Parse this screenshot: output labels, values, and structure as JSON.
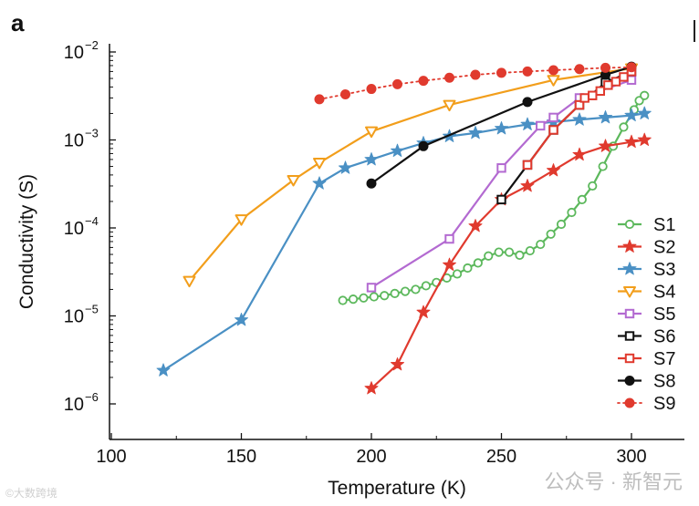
{
  "panel_label": "a",
  "watermark_right": "公众号 · 新智元",
  "watermark_left": "©大数跨境",
  "chart_data": {
    "type": "line",
    "yscale": "log",
    "xlabel": "Temperature (K)",
    "ylabel": "Conductivity (S)",
    "xlim": [
      100,
      310
    ],
    "ylim": [
      6e-07,
      0.015
    ],
    "xticks": [
      100,
      150,
      200,
      250,
      300
    ],
    "yticks": [
      {
        "value": 1e-06,
        "mantissa": "10",
        "exp": "−6"
      },
      {
        "value": 1e-05,
        "mantissa": "10",
        "exp": "−5"
      },
      {
        "value": 0.0001,
        "mantissa": "10",
        "exp": "−4"
      },
      {
        "value": 0.001,
        "mantissa": "10",
        "exp": "−3"
      },
      {
        "value": 0.01,
        "mantissa": "10",
        "exp": "−2"
      }
    ],
    "legend_position": "right",
    "series": [
      {
        "name": "S1",
        "color": "#5cb85c",
        "marker": "circle-open",
        "line": "solid",
        "x": [
          189,
          193,
          197,
          201,
          205,
          209,
          213,
          217,
          221,
          225,
          229,
          233,
          237,
          241,
          245,
          249,
          253,
          257,
          261,
          265,
          269,
          273,
          277,
          281,
          285,
          289,
          293,
          297,
          301,
          303,
          305
        ],
        "y": [
          1.5e-05,
          1.55e-05,
          1.6e-05,
          1.65e-05,
          1.7e-05,
          1.8e-05,
          1.9e-05,
          2e-05,
          2.2e-05,
          2.4e-05,
          2.7e-05,
          3e-05,
          3.5e-05,
          4e-05,
          4.8e-05,
          5.3e-05,
          5.3e-05,
          4.9e-05,
          5.5e-05,
          6.5e-05,
          8.5e-05,
          0.00011,
          0.00015,
          0.00021,
          0.0003,
          0.0005,
          0.00085,
          0.0014,
          0.0022,
          0.0028,
          0.0032
        ]
      },
      {
        "name": "S2",
        "color": "#e03a2e",
        "marker": "star-filled",
        "line": "solid",
        "x": [
          200,
          210,
          220,
          230,
          240,
          250,
          260,
          270,
          280,
          290,
          300,
          305
        ],
        "y": [
          1.5e-06,
          2.8e-06,
          1.1e-05,
          3.8e-05,
          0.000105,
          0.00021,
          0.0003,
          0.00045,
          0.00068,
          0.00085,
          0.00095,
          0.001
        ]
      },
      {
        "name": "S3",
        "color": "#4a90c4",
        "marker": "star-filled",
        "line": "solid",
        "x": [
          120,
          150,
          180,
          190,
          200,
          210,
          220,
          230,
          240,
          250,
          260,
          270,
          280,
          290,
          300,
          305
        ],
        "y": [
          2.4e-06,
          9e-06,
          0.00032,
          0.00048,
          0.0006,
          0.00075,
          0.00092,
          0.0011,
          0.0012,
          0.00135,
          0.0015,
          0.0016,
          0.0017,
          0.0018,
          0.0019,
          0.002
        ]
      },
      {
        "name": "S4",
        "color": "#f29e1b",
        "marker": "triangle-down-open",
        "line": "solid",
        "x": [
          130,
          150,
          170,
          180,
          200,
          230,
          270,
          300
        ],
        "y": [
          2.5e-05,
          0.000125,
          0.00035,
          0.00055,
          0.00125,
          0.0025,
          0.0048,
          0.0065
        ]
      },
      {
        "name": "S5",
        "color": "#b36ad1",
        "marker": "square-open",
        "line": "solid",
        "x": [
          200,
          230,
          250,
          265,
          270,
          280,
          300
        ],
        "y": [
          2.1e-05,
          7.5e-05,
          0.00048,
          0.00145,
          0.0018,
          0.003,
          0.0048
        ]
      },
      {
        "name": "S6",
        "color": "#111111",
        "marker": "square-open",
        "line": "solid",
        "x": [
          250,
          260,
          270,
          280,
          290,
          300
        ],
        "y": [
          0.00021,
          0.00052,
          0.0013,
          0.0025,
          0.0045,
          0.006
        ]
      },
      {
        "name": "S7",
        "color": "#e03a2e",
        "marker": "square-open",
        "line": "solid",
        "x": [
          260,
          270,
          280,
          282,
          285,
          288,
          291,
          294,
          297,
          300
        ],
        "y": [
          0.00052,
          0.0013,
          0.0025,
          0.003,
          0.0032,
          0.0036,
          0.0042,
          0.0046,
          0.0052,
          0.006
        ]
      },
      {
        "name": "S8",
        "color": "#111111",
        "marker": "circle-filled",
        "line": "solid",
        "x": [
          200,
          220,
          260,
          290,
          300
        ],
        "y": [
          0.00032,
          0.00085,
          0.0027,
          0.0055,
          0.0068
        ]
      },
      {
        "name": "S9",
        "color": "#e03a2e",
        "marker": "circle-filled",
        "line": "dotted",
        "x": [
          180,
          190,
          200,
          210,
          220,
          230,
          240,
          250,
          260,
          270,
          280,
          290,
          300
        ],
        "y": [
          0.0029,
          0.0033,
          0.0038,
          0.0043,
          0.0047,
          0.0051,
          0.0055,
          0.0058,
          0.006,
          0.0062,
          0.0064,
          0.0066,
          0.0067
        ]
      }
    ]
  }
}
